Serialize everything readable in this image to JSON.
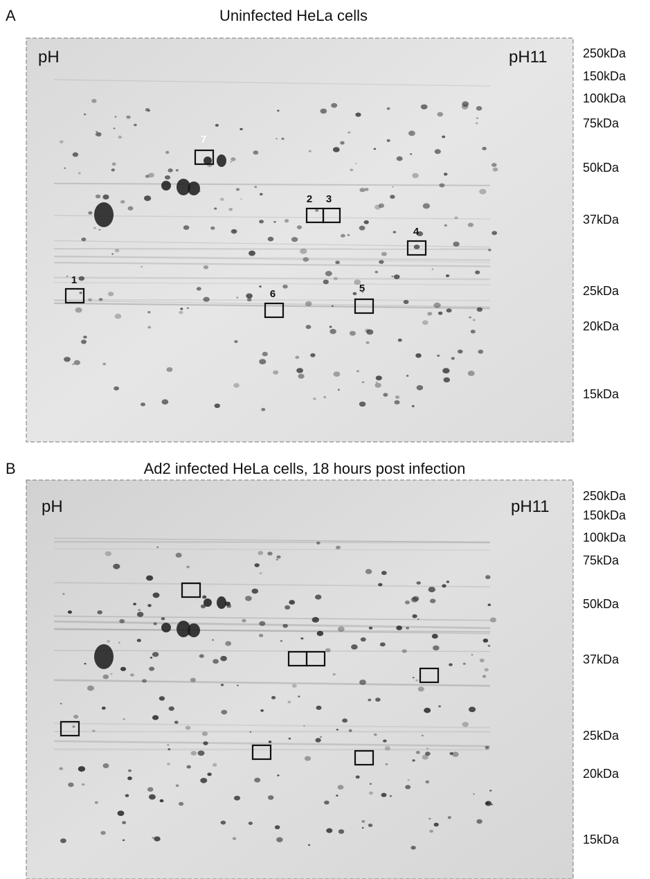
{
  "panels": [
    {
      "letter": "A",
      "title": "Uninfected HeLa cells",
      "ph_left": "pH",
      "ph_right": "pH11",
      "markers": [
        "250kDa",
        "150kDa",
        "100kDa",
        "75kDa",
        "50kDa",
        "37kDa",
        "25kDa",
        "20kDa",
        "15kDa"
      ],
      "spot_labels": [
        "7",
        "2",
        "3",
        "4",
        "1",
        "6",
        "5"
      ]
    },
    {
      "letter": "B",
      "title": "Ad2 infected HeLa cells, 18 hours post infection",
      "ph_left": "pH",
      "ph_right": "pH11",
      "markers": [
        "250kDa",
        "150kDa",
        "100kDa",
        "75kDa",
        "50kDa",
        "37kDa",
        "25kDa",
        "20kDa",
        "15kDa"
      ]
    }
  ]
}
